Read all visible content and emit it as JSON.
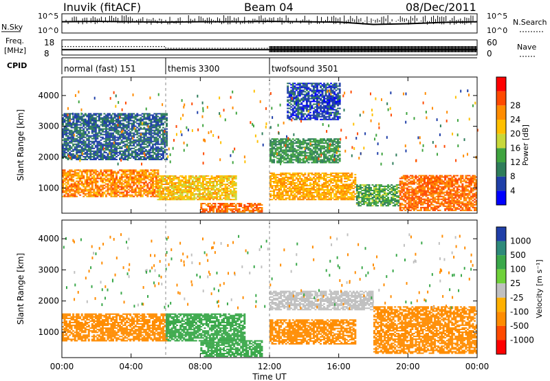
{
  "header": {
    "station": "Inuvik (fitACF)",
    "beam": "Beam 04",
    "date": "08/Dec/2011"
  },
  "noise_panel": {
    "left_label": "N.Sky",
    "right_label": "N.Search",
    "left_ticks": [
      "10^5",
      "10^0"
    ],
    "right_ticks": [
      "10^5",
      "10^0"
    ]
  },
  "freq_panel": {
    "left_label_1": "Freq.",
    "left_label_2": "[MHz]",
    "right_label": "Nave",
    "left_ticks": [
      "18",
      "8"
    ],
    "right_ticks": [
      "60",
      "0"
    ]
  },
  "cpid_panel": {
    "label": "CPID",
    "segments": [
      {
        "text": "normal (fast) 151",
        "start_hour": 0
      },
      {
        "text": "themis 3300",
        "start_hour": 6
      },
      {
        "text": "twofsound 3501",
        "start_hour": 12
      }
    ]
  },
  "x_axis": {
    "label": "Time UT",
    "ticks": [
      "00:00",
      "04:00",
      "08:00",
      "12:00",
      "16:00",
      "20:00",
      "00:00"
    ],
    "range_hours": [
      0,
      24
    ]
  },
  "power_panel": {
    "ylabel": "Slant Range [km]",
    "yticks": [
      "1000",
      "2000",
      "3000",
      "4000"
    ],
    "colorbar_label": "Power [dB]",
    "colorbar_ticks": [
      "4",
      "8",
      "12",
      "16",
      "20",
      "24",
      "28"
    ],
    "colors": [
      "#0000ff",
      "#1f3fa8",
      "#2e7d5a",
      "#3fa43f",
      "#c8d83a",
      "#ffc000",
      "#ff8c00",
      "#ff4a00",
      "#ff0000"
    ]
  },
  "velocity_panel": {
    "ylabel": "Slant Range [km]",
    "yticks": [
      "1000",
      "2000",
      "3000",
      "4000"
    ],
    "colorbar_label": "Velocity [m s⁻¹]",
    "colorbar_ticks": [
      "1000",
      "500",
      "100",
      "25",
      "-25",
      "-100",
      "-500",
      "-1000"
    ],
    "colors": [
      "#1f3fa8",
      "#2e8a7a",
      "#3aa84a",
      "#6fd13a",
      "#c0c0c0",
      "#ffb000",
      "#ff8c00",
      "#ff4a00",
      "#ff0000"
    ]
  },
  "chart_data": [
    {
      "type": "line",
      "title": "N.Sky / N.Search",
      "x": [
        0,
        2,
        4,
        6,
        8,
        10,
        12,
        14,
        16,
        18,
        20,
        22,
        24
      ],
      "ylim_exp": [
        0,
        5
      ],
      "series": [
        {
          "name": "N.Sky",
          "values_exp": [
            3.0,
            3.1,
            3.0,
            2.9,
            3.0,
            3.0,
            3.1,
            3.0,
            2.9,
            2.2,
            2.4,
            2.8,
            3.0
          ]
        }
      ]
    },
    {
      "type": "line",
      "title": "Freq. / Nave",
      "x": [
        0,
        6,
        12,
        24
      ],
      "series": [
        {
          "name": "Freq. [MHz]",
          "values": [
            11.5,
            11.5,
            11.5,
            11.5
          ],
          "ylim": [
            8,
            18
          ]
        },
        {
          "name": "Nave",
          "values": [
            28,
            27,
            27,
            27
          ],
          "ylim": [
            0,
            60
          ]
        }
      ]
    },
    {
      "type": "heatmap",
      "title": "Power [dB]",
      "xlabel": "Time UT",
      "ylabel": "Slant Range [km]",
      "xlim": [
        0,
        24
      ],
      "ylim": [
        180,
        4600
      ],
      "colorbar": {
        "label": "Power [dB]",
        "ticks": [
          4,
          8,
          12,
          16,
          20,
          24,
          28
        ]
      },
      "bands": [
        {
          "t0": 0,
          "t1": 5.5,
          "r0": 700,
          "r1": 1600,
          "value": 26
        },
        {
          "t0": 5.5,
          "t1": 10,
          "r0": 600,
          "r1": 1400,
          "value": 22
        },
        {
          "t0": 8,
          "t1": 11.5,
          "r0": 200,
          "r1": 500,
          "value": 28
        },
        {
          "t0": 12,
          "t1": 17,
          "r0": 600,
          "r1": 1500,
          "value": 24
        },
        {
          "t0": 17,
          "t1": 19.5,
          "r0": 400,
          "r1": 1100,
          "value": 14
        },
        {
          "t0": 19.5,
          "t1": 24,
          "r0": 250,
          "r1": 1400,
          "value": 28
        },
        {
          "t0": 0,
          "t1": 6,
          "r0": 1900,
          "r1": 3400,
          "value": 8
        },
        {
          "t0": 12,
          "t1": 16,
          "r0": 1800,
          "r1": 2600,
          "value": 12
        },
        {
          "t0": 13,
          "t1": 16,
          "r0": 3200,
          "r1": 4400,
          "value": 6
        }
      ]
    },
    {
      "type": "heatmap",
      "title": "Velocity [m s-1]",
      "xlabel": "Time UT",
      "ylabel": "Slant Range [km]",
      "xlim": [
        0,
        24
      ],
      "ylim": [
        180,
        4600
      ],
      "colorbar": {
        "label": "Velocity [m s-1]",
        "ticks": [
          1000,
          500,
          100,
          25,
          -25,
          -100,
          -500,
          -1000
        ]
      },
      "bands": [
        {
          "t0": 0,
          "t1": 6,
          "r0": 700,
          "r1": 1600,
          "value": -250
        },
        {
          "t0": 6,
          "t1": 10.5,
          "r0": 700,
          "r1": 1600,
          "value": 150
        },
        {
          "t0": 8,
          "t1": 11.5,
          "r0": 200,
          "r1": 700,
          "value": 300
        },
        {
          "t0": 12,
          "t1": 17,
          "r0": 600,
          "r1": 1400,
          "value": -200
        },
        {
          "t0": 12,
          "t1": 18,
          "r0": 1700,
          "r1": 2300,
          "value": 0
        },
        {
          "t0": 18,
          "t1": 24,
          "r0": 300,
          "r1": 1800,
          "value": -300
        }
      ]
    }
  ]
}
